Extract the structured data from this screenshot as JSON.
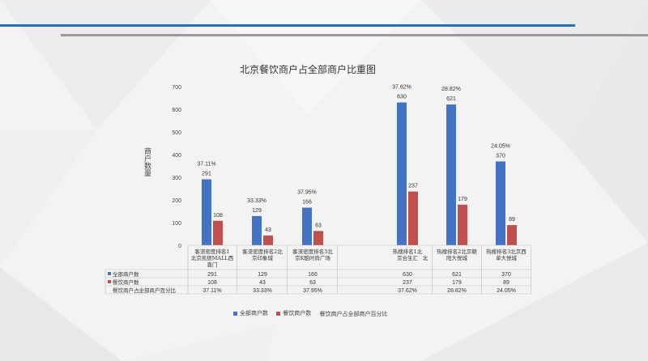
{
  "chart_data": {
    "type": "bar",
    "title": "北京餐饮商户占全部商户比重图",
    "ylabel": "商户数量",
    "ylim": [
      0,
      700
    ],
    "yticks": [
      0,
      100,
      200,
      300,
      400,
      500,
      600,
      700
    ],
    "categories": [
      "客流密度排名1北京凯德MALL西直门",
      "客流密度排名2北京印象城",
      "客流密度排名3北京K酷时尚广场",
      "热搜排名1北京合生汇",
      "热搜排名2北京朝阳大悦城",
      "热搜排名3北京西单大悦城"
    ],
    "category_lines": [
      [
        "客流密度排名1",
        "北京凯德MALL西",
        "直门"
      ],
      [
        "客流密度排名2北",
        "京印象城"
      ],
      [
        "客流密度排名3北",
        "京K酷时尚广场"
      ],
      [
        "热搜排名1北",
        "京合生汇"
      ],
      [
        "热搜排名2北京朝",
        "阳大悦城"
      ],
      [
        "热搜排名3北京西",
        "单大悦城"
      ]
    ],
    "series": [
      {
        "name": "全部商户数",
        "values": [
          291,
          129,
          166,
          630,
          621,
          370
        ],
        "color": "#4472c4"
      },
      {
        "name": "餐饮商户数",
        "values": [
          108,
          43,
          63,
          237,
          179,
          89
        ],
        "color": "#c0504d"
      }
    ],
    "ratio_series": {
      "name": "餐饮商户占全部商户百分比",
      "values": [
        "37.11%",
        "33.33%",
        "37.95%",
        "37.62%",
        "28.82%",
        "24.05%"
      ]
    },
    "table_rows": [
      {
        "label": "全部商户数",
        "values": [
          "291",
          "129",
          "166",
          "630",
          "621",
          "370"
        ]
      },
      {
        "label": "餐饮商户数",
        "values": [
          "108",
          "43",
          "63",
          "237",
          "179",
          "89"
        ]
      },
      {
        "label": "餐饮商户占全部商户百分比",
        "values": [
          "37.11%",
          "33.33%",
          "37.95%",
          "37.62%",
          "28.82%",
          "24.05%"
        ]
      }
    ],
    "stray_text": "北",
    "grid": false,
    "legend_position": "bottom"
  }
}
